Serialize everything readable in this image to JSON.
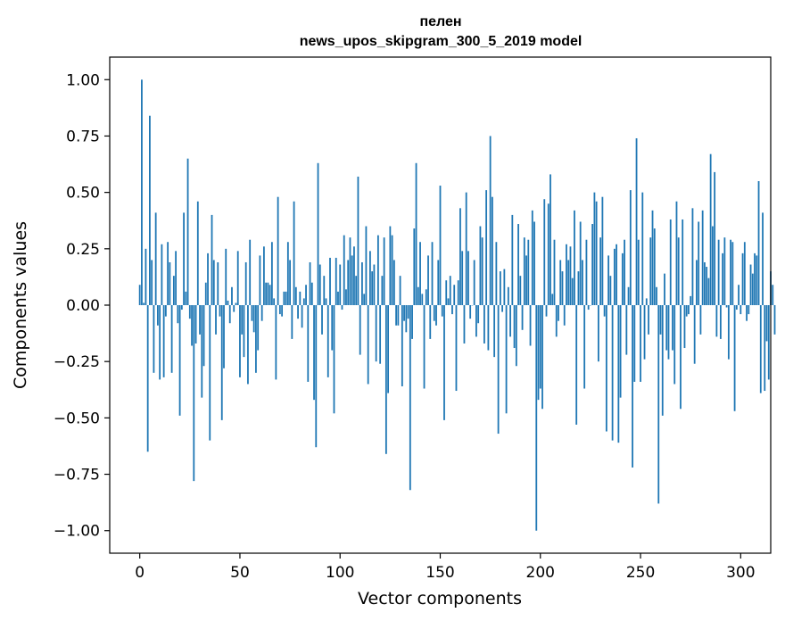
{
  "chart_data": {
    "type": "bar",
    "title": [
      "пелен",
      "news_upos_skipgram_300_5_2019 model"
    ],
    "xlabel": "Vector components",
    "ylabel": "Components values",
    "xlim": [
      -15,
      315
    ],
    "ylim": [
      -1.1,
      1.1
    ],
    "xticks": [
      0,
      50,
      100,
      150,
      200,
      250,
      300
    ],
    "xtick_labels": [
      "0",
      "50",
      "100",
      "150",
      "200",
      "250",
      "300"
    ],
    "yticks": [
      1.0,
      0.75,
      0.5,
      0.25,
      0.0,
      -0.25,
      -0.5,
      -0.75,
      -1.0
    ],
    "ytick_labels": [
      "1.00",
      "0.75",
      "0.50",
      "0.25",
      "0.00",
      "−0.25",
      "−0.50",
      "−0.75",
      "−1.00"
    ],
    "grid": false,
    "x_start": 0,
    "values": [
      0.09,
      1.0,
      0.01,
      0.25,
      -0.65,
      0.84,
      0.2,
      -0.3,
      0.41,
      -0.09,
      -0.33,
      0.27,
      -0.32,
      -0.05,
      0.28,
      0.19,
      -0.3,
      0.13,
      0.24,
      -0.08,
      -0.49,
      -0.02,
      0.41,
      0.06,
      0.65,
      -0.06,
      -0.18,
      -0.78,
      -0.17,
      0.46,
      -0.13,
      -0.41,
      -0.27,
      0.1,
      0.23,
      -0.6,
      0.4,
      0.2,
      -0.13,
      0.19,
      -0.05,
      -0.51,
      -0.28,
      0.25,
      0.02,
      -0.08,
      0.08,
      -0.03,
      0.01,
      0.24,
      -0.32,
      -0.13,
      -0.23,
      0.19,
      -0.35,
      0.29,
      -0.07,
      -0.12,
      -0.3,
      -0.2,
      0.22,
      -0.07,
      0.26,
      0.1,
      0.1,
      0.09,
      0.28,
      0.03,
      -0.33,
      0.48,
      -0.04,
      -0.05,
      0.06,
      0.06,
      0.28,
      0.2,
      -0.15,
      0.46,
      0.08,
      -0.06,
      0.06,
      -0.1,
      0.03,
      0.09,
      -0.34,
      0.19,
      0.1,
      -0.42,
      -0.63,
      0.63,
      0.18,
      -0.13,
      0.13,
      0.03,
      -0.32,
      0.21,
      -0.2,
      -0.48,
      0.21,
      0.06,
      0.18,
      -0.02,
      0.31,
      0.07,
      0.2,
      0.3,
      0.22,
      0.26,
      0.13,
      0.57,
      -0.22,
      0.19,
      0.05,
      0.35,
      -0.35,
      0.24,
      0.15,
      0.18,
      -0.25,
      0.31,
      -0.26,
      0.13,
      0.3,
      -0.66,
      -0.39,
      0.35,
      0.31,
      0.2,
      -0.09,
      -0.09,
      0.13,
      -0.36,
      -0.07,
      -0.12,
      -0.06,
      -0.82,
      -0.15,
      0.34,
      0.63,
      0.08,
      0.28,
      0.05,
      -0.37,
      0.07,
      0.22,
      -0.15,
      0.28,
      -0.07,
      -0.09,
      0.2,
      0.53,
      -0.05,
      -0.51,
      0.11,
      0.03,
      0.13,
      -0.04,
      0.09,
      -0.38,
      0.11,
      0.43,
      0.24,
      -0.17,
      0.5,
      0.24,
      -0.06,
      0.0,
      0.2,
      -0.14,
      -0.08,
      0.35,
      0.3,
      -0.17,
      0.51,
      -0.2,
      0.75,
      0.48,
      -0.23,
      0.28,
      -0.57,
      0.15,
      -0.03,
      0.16,
      -0.48,
      0.08,
      -0.14,
      0.4,
      -0.19,
      -0.27,
      0.36,
      0.13,
      -0.11,
      0.3,
      0.22,
      0.29,
      -0.18,
      0.42,
      0.37,
      -1.0,
      -0.42,
      -0.37,
      -0.46,
      0.47,
      -0.05,
      0.45,
      0.58,
      0.05,
      0.29,
      -0.14,
      -0.07,
      0.2,
      0.15,
      -0.09,
      0.27,
      0.2,
      0.26,
      0.12,
      0.42,
      -0.53,
      0.15,
      0.37,
      0.2,
      -0.37,
      0.29,
      -0.02,
      0.0,
      0.36,
      0.5,
      0.46,
      -0.25,
      0.3,
      0.48,
      -0.05,
      -0.56,
      0.22,
      0.13,
      -0.6,
      0.25,
      0.27,
      -0.61,
      -0.41,
      0.23,
      0.29,
      -0.22,
      0.08,
      0.51,
      -0.72,
      -0.34,
      0.74,
      0.29,
      -0.34,
      0.5,
      -0.24,
      0.03,
      -0.13,
      0.3,
      0.42,
      0.34,
      0.08,
      -0.88,
      -0.13,
      -0.49,
      0.14,
      -0.2,
      -0.24,
      0.38,
      -0.2,
      -0.35,
      0.46,
      0.3,
      -0.46,
      0.38,
      -0.19,
      -0.05,
      -0.04,
      0.04,
      0.43,
      -0.26,
      0.2,
      0.37,
      -0.13,
      0.42,
      0.19,
      0.17,
      0.12,
      0.67,
      0.35,
      0.59,
      -0.14,
      0.29,
      -0.15,
      0.23,
      0.3,
      -0.01,
      -0.24,
      0.29,
      0.28,
      -0.47,
      -0.02,
      0.09,
      -0.04,
      0.23,
      0.28,
      -0.07,
      -0.04,
      0.18,
      0.14,
      0.23,
      0.22,
      0.55,
      -0.39,
      0.41,
      -0.38,
      -0.16,
      -0.33,
      0.15,
      0.09,
      -0.13
    ]
  }
}
